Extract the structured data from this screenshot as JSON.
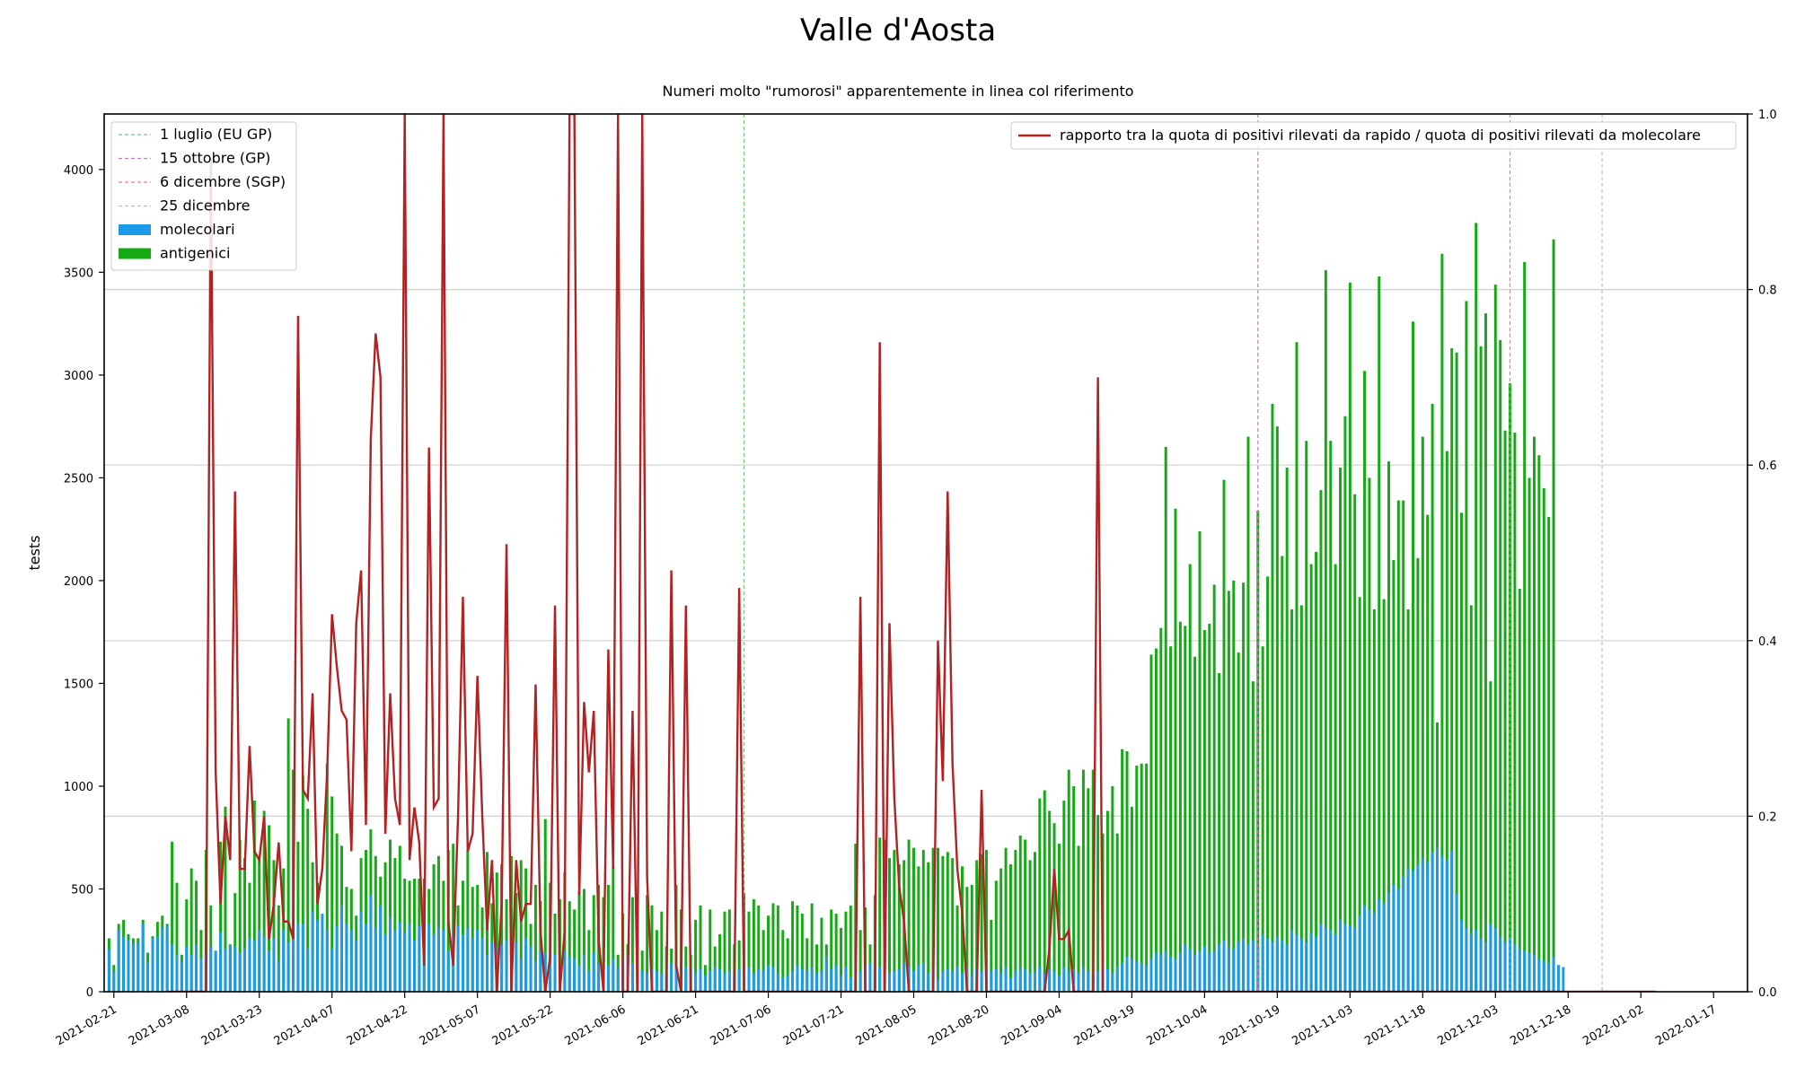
{
  "chart_data": {
    "type": "bar",
    "title": "Valle d'Aosta",
    "subtitle": "Numeri molto \"rumorosi\" apparentemente in linea col riferimento",
    "ylabel": "tests",
    "ylim": [
      0,
      4270
    ],
    "y2lim": [
      0,
      1.0
    ],
    "grid": "horizontal (right axis)",
    "x_range": [
      "2021-02-19",
      "2022-01-24"
    ],
    "x_tick_labels": [
      "2021-02-21",
      "2021-03-08",
      "2021-03-23",
      "2021-04-07",
      "2021-04-22",
      "2021-05-07",
      "2021-05-22",
      "2021-06-06",
      "2021-06-21",
      "2021-07-06",
      "2021-07-21",
      "2021-08-05",
      "2021-08-20",
      "2021-09-04",
      "2021-09-19",
      "2021-10-04",
      "2021-10-19",
      "2021-11-03",
      "2021-11-18",
      "2021-12-03",
      "2021-12-18",
      "2022-01-02",
      "2022-01-17"
    ],
    "y_ticks": [
      0,
      500,
      1000,
      1500,
      2000,
      2500,
      3000,
      3500,
      4000
    ],
    "y2_ticks": [
      0.0,
      0.2,
      0.4,
      0.6,
      0.8,
      1.0
    ],
    "reference_lines": [
      {
        "label": "1 luglio (EU GP)",
        "date": "2021-07-01",
        "color": "#7fbf7f"
      },
      {
        "label": "15 ottobre (GP)",
        "date": "2021-10-15",
        "color": "#bf7fbf"
      },
      {
        "label": "6 dicembre (SGP)",
        "date": "2021-12-06",
        "color": "#f08080"
      },
      {
        "label": "25 dicembre",
        "date": "2021-12-25",
        "color": "#bfbfbf"
      }
    ],
    "legend_left": {
      "position": "top-left",
      "labels": [
        "1 luglio (EU GP)",
        "15 ottobre (GP)",
        "6 dicembre (SGP)",
        "25 dicembre",
        "molecolari",
        "antigenici"
      ]
    },
    "legend_right": {
      "position": "top-right",
      "labels": [
        "rapporto tra la quota di positivi rilevati da rapido / quota di positivi rilevati da molecolare"
      ]
    },
    "series": [
      {
        "name": "molecolari",
        "color": "#1a9ae8",
        "type": "bar",
        "start": "2021-02-20",
        "values": [
          210,
          100,
          300,
          270,
          250,
          230,
          240,
          330,
          140,
          260,
          270,
          310,
          320,
          230,
          180,
          150,
          220,
          180,
          230,
          160,
          190,
          220,
          200,
          290,
          210,
          230,
          220,
          190,
          210,
          260,
          250,
          300,
          270,
          200,
          260,
          150,
          300,
          240,
          320,
          330,
          330,
          210,
          390,
          350,
          380,
          300,
          210,
          320,
          420,
          330,
          300,
          250,
          390,
          330,
          470,
          310,
          420,
          280,
          360,
          300,
          340,
          290,
          330,
          250,
          320,
          340,
          330,
          280,
          310,
          300,
          200,
          270,
          320,
          280,
          310,
          260,
          300,
          260,
          180,
          240,
          220,
          230,
          250,
          200,
          240,
          160,
          260,
          220,
          150,
          200,
          190,
          190,
          180,
          130,
          200,
          170,
          160,
          130,
          180,
          100,
          190,
          140,
          90,
          130,
          160,
          120,
          150,
          180,
          140,
          130,
          100,
          90,
          110,
          100,
          90,
          80,
          140,
          130,
          100,
          120,
          110,
          90,
          110,
          80,
          100,
          120,
          110,
          90,
          100,
          80,
          110,
          100,
          120,
          90,
          110,
          100,
          130,
          120,
          90,
          70,
          80,
          100,
          130,
          110,
          100,
          120,
          90,
          100,
          170,
          110,
          130,
          80,
          120,
          70,
          60,
          100,
          130,
          140,
          110,
          120,
          160,
          90,
          100,
          110,
          140,
          120,
          100,
          130,
          140,
          90,
          110,
          60,
          100,
          110,
          100,
          120,
          90,
          120,
          80,
          110,
          100,
          120,
          100,
          110,
          90,
          120,
          70,
          100,
          120,
          110,
          90,
          100,
          120,
          90,
          110,
          100,
          80,
          120,
          100,
          110,
          90,
          120,
          100,
          80,
          100,
          130,
          110,
          90,
          120,
          140,
          170,
          160,
          150,
          140,
          130,
          160,
          190,
          180,
          200,
          170,
          160,
          190,
          230,
          210,
          180,
          200,
          220,
          190,
          200,
          230,
          250,
          220,
          210,
          240,
          260,
          230,
          250,
          220,
          280,
          260,
          240,
          270,
          250,
          230,
          300,
          280,
          260,
          240,
          290,
          270,
          330,
          310,
          300,
          280,
          350,
          330,
          320,
          310,
          370,
          420,
          400,
          380,
          450,
          430,
          480,
          520,
          500,
          560,
          600,
          590,
          620,
          650,
          630,
          680,
          700,
          660,
          640,
          690,
          480,
          350,
          310,
          280,
          300,
          260,
          240,
          330,
          310,
          270,
          240,
          260,
          230,
          210,
          200,
          190,
          180,
          160,
          150,
          140,
          170,
          130,
          120
        ]
      },
      {
        "name": "antigenici",
        "color": "#14aa14",
        "type": "bar",
        "start": "2021-02-20",
        "values": [
          260,
          130,
          330,
          350,
          280,
          260,
          260,
          350,
          190,
          270,
          340,
          370,
          330,
          730,
          530,
          180,
          450,
          600,
          540,
          300,
          690,
          420,
          190,
          730,
          900,
          230,
          480,
          740,
          650,
          530,
          930,
          650,
          880,
          810,
          640,
          420,
          600,
          1330,
          1080,
          730,
          1050,
          890,
          630,
          530,
          230,
          1110,
          950,
          770,
          710,
          510,
          500,
          370,
          650,
          690,
          790,
          660,
          560,
          630,
          740,
          650,
          710,
          550,
          540,
          550,
          550,
          550,
          500,
          620,
          660,
          540,
          690,
          720,
          420,
          540,
          690,
          510,
          520,
          410,
          680,
          430,
          580,
          620,
          450,
          660,
          480,
          640,
          600,
          330,
          520,
          440,
          840,
          530,
          380,
          450,
          580,
          440,
          400,
          490,
          500,
          300,
          470,
          520,
          460,
          520,
          610,
          180,
          380,
          230,
          460,
          470,
          200,
          470,
          420,
          300,
          390,
          220,
          210,
          520,
          400,
          220,
          180,
          350,
          420,
          130,
          400,
          220,
          280,
          390,
          400,
          230,
          250,
          480,
          390,
          450,
          420,
          300,
          370,
          430,
          420,
          300,
          260,
          440,
          420,
          380,
          260,
          430,
          230,
          360,
          230,
          400,
          380,
          310,
          390,
          420,
          720,
          300,
          410,
          230,
          470,
          750,
          740,
          650,
          690,
          620,
          640,
          740,
          700,
          610,
          690,
          630,
          700,
          700,
          660,
          680,
          650,
          420,
          610,
          510,
          520,
          640,
          670,
          690,
          350,
          540,
          600,
          700,
          620,
          690,
          760,
          740,
          640,
          680,
          940,
          980,
          880,
          820,
          720,
          930,
          1080,
          1000,
          710,
          1080,
          990,
          1080,
          860,
          770,
          880,
          1000,
          770,
          1180,
          1170,
          900,
          1100,
          1110,
          1110,
          1640,
          1670,
          1770,
          2650,
          1680,
          2350,
          1800,
          1780,
          2080,
          1630,
          2240,
          1760,
          1790,
          1980,
          1550,
          2490,
          1950,
          2000,
          1650,
          1990,
          2700,
          1510,
          2340,
          1680,
          2020,
          2860,
          2750,
          2120,
          2550,
          1860,
          3160,
          1880,
          2680,
          2080,
          2140,
          2440,
          3510,
          2680,
          2080,
          2550,
          2800,
          3450,
          2420,
          1920,
          3020,
          2500,
          1860,
          3480,
          1910,
          2580,
          2100,
          2390,
          2390,
          1860,
          3260,
          2110,
          2700,
          2320,
          2860,
          1310,
          3590,
          2630,
          3130,
          3110,
          2330,
          3360,
          1880,
          3740,
          3140,
          3300,
          1510,
          3440,
          3170,
          2730,
          2960,
          2720,
          1960,
          3550,
          2500,
          2700,
          2610,
          2450,
          2310,
          3660
        ]
      },
      {
        "name": "rapporto tra la quota di positivi rilevati da rapido / quota di positivi rilevati da molecolare",
        "color": "#b22222",
        "type": "line",
        "axis": "right",
        "start": "2021-03-04",
        "values": [
          0.0,
          0.0,
          0.0,
          0.0,
          0.0,
          0.0,
          0.0,
          0.0,
          0.0,
          0.95,
          0.25,
          0.1,
          0.2,
          0.15,
          0.57,
          0.14,
          0.14,
          0.28,
          0.16,
          0.15,
          0.2,
          0.06,
          0.1,
          0.17,
          0.08,
          0.08,
          0.06,
          0.77,
          0.23,
          0.22,
          0.34,
          0.1,
          0.14,
          0.25,
          0.43,
          0.37,
          0.32,
          0.31,
          0.16,
          0.42,
          0.48,
          0.19,
          0.63,
          0.75,
          0.7,
          0.18,
          0.34,
          0.22,
          0.19,
          1.0,
          0.15,
          0.21,
          0.17,
          0.03,
          0.62,
          0.21,
          0.22,
          1.0,
          0.08,
          0.03,
          0.2,
          0.45,
          0.16,
          0.18,
          0.36,
          0.2,
          0.07,
          0.15,
          0.0,
          0.1,
          0.51,
          0.0,
          0.15,
          0.08,
          0.1,
          0.1,
          0.35,
          0.07,
          0.0,
          0.04,
          0.44,
          0.0,
          0.07,
          1.0,
          1.0,
          0.11,
          0.33,
          0.25,
          0.32,
          0.06,
          0.0,
          0.39,
          0.14,
          1.0,
          0.0,
          0.0,
          0.32,
          0.0,
          1.0,
          0.13,
          0.0,
          0.0,
          0.0,
          0.0,
          0.48,
          0.03,
          0.0,
          0.44,
          0.0,
          0.0,
          0.0,
          0.0,
          0.0,
          0.0,
          0.0,
          0.0,
          0.0,
          0.0,
          0.46,
          0.0,
          0.0,
          0.0,
          0.0,
          0.0,
          0.0,
          0.0,
          0.0,
          0.0,
          0.0,
          0.0,
          0.0,
          0.0,
          0.0,
          0.0,
          0.0,
          0.0,
          0.0,
          0.0,
          0.0,
          0.0,
          0.0,
          0.0,
          0.0,
          0.45,
          0.0,
          0.0,
          0.0,
          0.74,
          0.0,
          0.42,
          0.22,
          0.12,
          0.08,
          0.0,
          0.0,
          0.0,
          0.0,
          0.0,
          0.0,
          0.4,
          0.24,
          0.57,
          0.26,
          0.14,
          0.09,
          0.0,
          0.0,
          0.0,
          0.23,
          0.0,
          0.0,
          0.0,
          0.0,
          0.0,
          0.0,
          0.0,
          0.0,
          0.0,
          0.0,
          0.0,
          0.0,
          0.0,
          0.05,
          0.14,
          0.06,
          0.06,
          0.07,
          0.0,
          0.0,
          0.0,
          0.0,
          0.0,
          0.7,
          0.0,
          0.0,
          0.0,
          0.0,
          0.0,
          0.0,
          0.0,
          0.0,
          0.0,
          0.0,
          0.0,
          0.0,
          0.0,
          0.0,
          0.0,
          0.0,
          0.0,
          0.0,
          0.0,
          0.0,
          0.0,
          0.0,
          0.0,
          0.0,
          0.0,
          0.0,
          0.0,
          0.0,
          0.0,
          0.0,
          0.0,
          0.0,
          0.0,
          0.0,
          0.0,
          0.0,
          0.0,
          0.0,
          0.0,
          0.0,
          0.0,
          0.0,
          0.0,
          0.0,
          0.0,
          0.0,
          0.0,
          0.0,
          0.0,
          0.0,
          0.0,
          0.0,
          0.0,
          0.0,
          0.0,
          0.0,
          0.0,
          0.0,
          0.0,
          0.0,
          0.0,
          0.0,
          0.0,
          0.0,
          0.0,
          0.0,
          0.0,
          0.0,
          0.0,
          0.0,
          0.0,
          0.0,
          0.0,
          0.0,
          0.0,
          0.0,
          0.0,
          0.0,
          0.0,
          0.0,
          0.0,
          0.0,
          0.0,
          0.0,
          0.0,
          0.0,
          0.0,
          0.0,
          0.0,
          0.0,
          0.0,
          0.0,
          0.0,
          0.0,
          0.0,
          0.0,
          0.0,
          0.0,
          0.0,
          0.0,
          0.0,
          0.0,
          0.0,
          0.0,
          0.0,
          0.0,
          0.0,
          0.0,
          0.0,
          0.0,
          0.0,
          0.0,
          0.0,
          0.0,
          0.0
        ]
      }
    ]
  }
}
